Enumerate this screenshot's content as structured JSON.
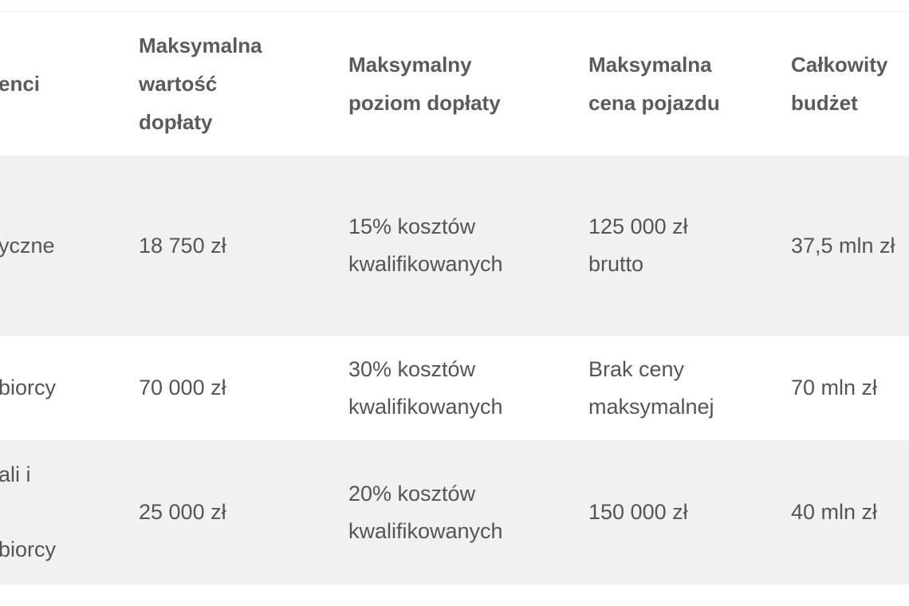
{
  "table": {
    "headers": [
      "enci",
      "Maksymalna\nwartość\ndopłaty",
      "Maksymalny\npoziom dopłaty",
      "Maksymalna\ncena pojazdu",
      "Całkowity\nbudżet"
    ],
    "rows": [
      [
        "yczne",
        "18 750 zł",
        "15% kosztów\nkwalifikowanych",
        "125 000 zł\nbrutto",
        "37,5 mln zł"
      ],
      [
        "biorcy",
        "70 000 zł",
        "30% kosztów\nkwalifikowanych",
        "Brak ceny\nmaksymalnej",
        "70 mln zł"
      ],
      [
        "ali i\n\nbiorcy",
        "25 000 zł",
        "20% kosztów\nkwalifikowanych",
        "150 000 zł",
        "40 mln zł"
      ]
    ]
  }
}
